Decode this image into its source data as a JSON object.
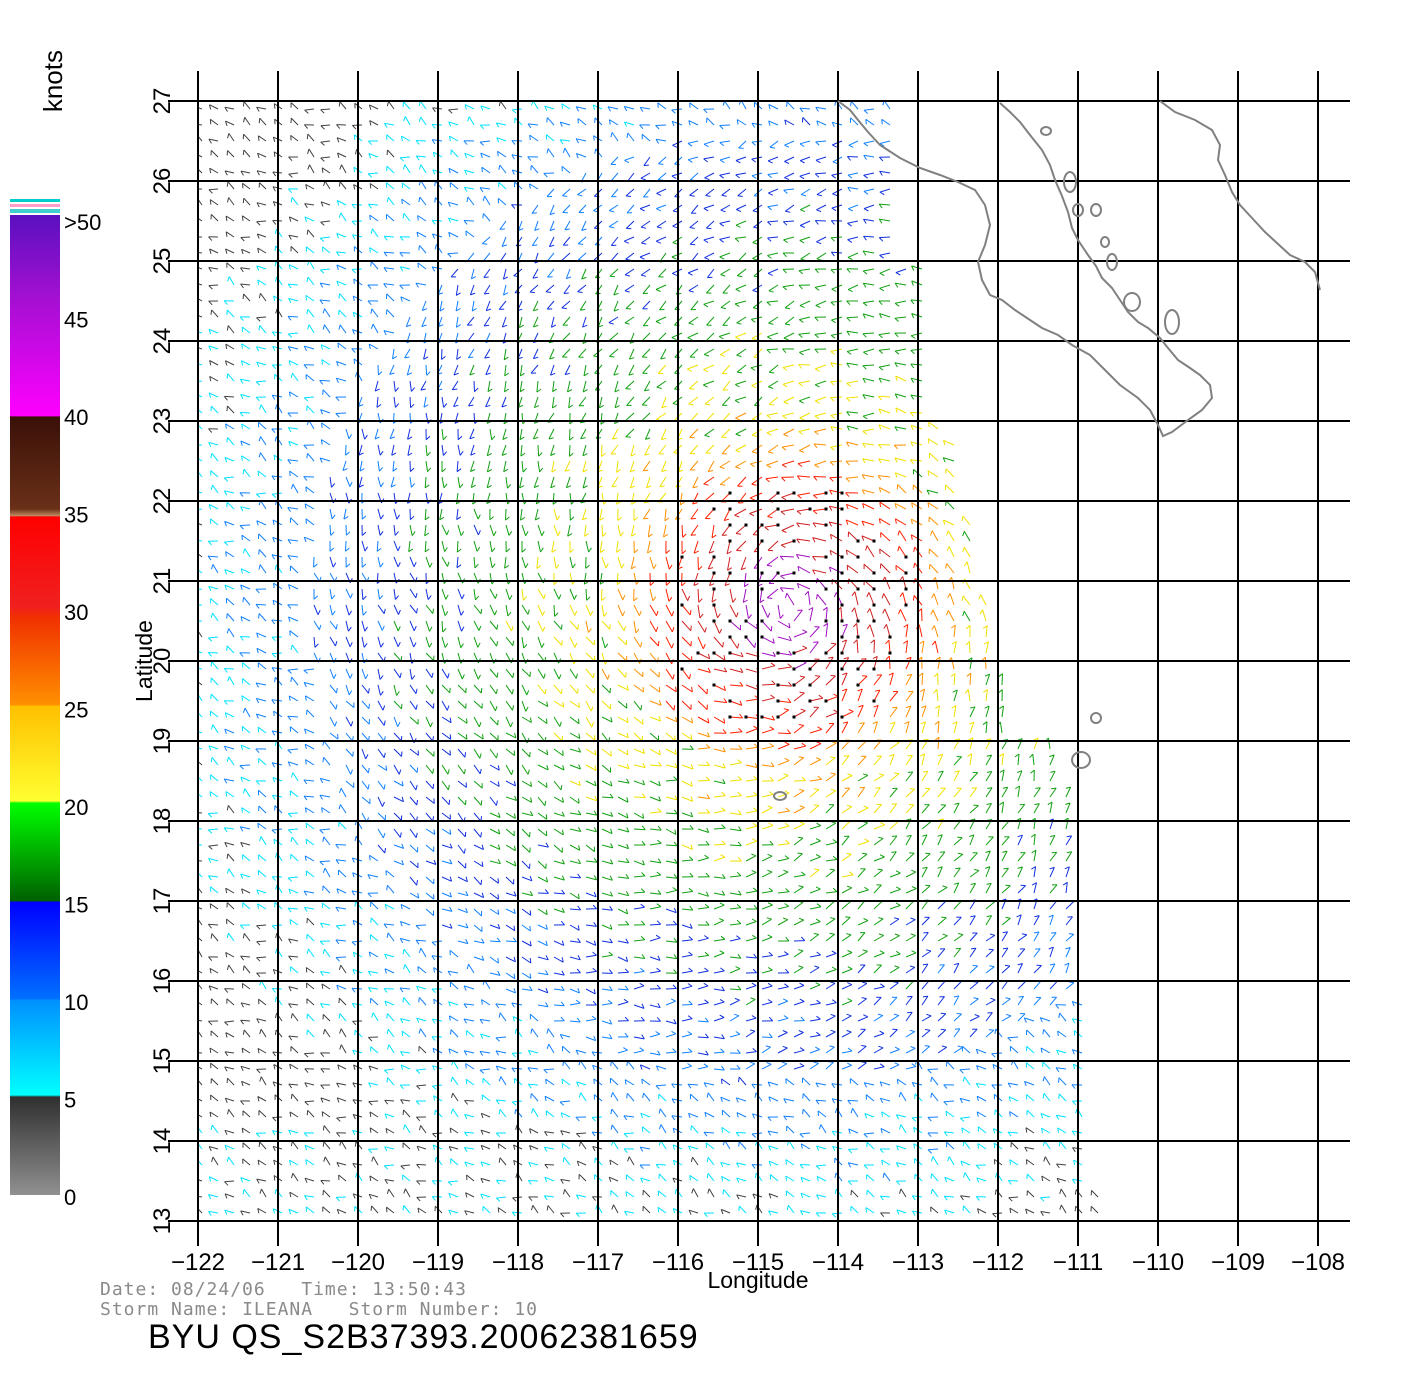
{
  "map": {
    "lon_range": [
      -122,
      -108
    ],
    "lat_range": [
      13,
      27
    ],
    "lon_ticks": [
      "-122",
      "-121",
      "-120",
      "-119",
      "-118",
      "-117",
      "-116",
      "-115",
      "-114",
      "-113",
      "-112",
      "-111",
      "-110",
      "-109",
      "-108"
    ],
    "lat_ticks": [
      "13",
      "14",
      "15",
      "16",
      "17",
      "18",
      "19",
      "20",
      "21",
      "22",
      "23",
      "24",
      "25",
      "26",
      "27"
    ],
    "xlabel": "Longitude",
    "ylabel": "Latitude",
    "grid": true,
    "coast_color": "#808080",
    "rain_flag_color": "#000000",
    "storm_center": {
      "lon": -114.6,
      "lat": 20.7
    }
  },
  "colorbar": {
    "unit_label": "knots",
    "labels": [
      ">50",
      "45",
      "40",
      "35",
      "30",
      "25",
      "20",
      "15",
      "10",
      "5",
      "0"
    ],
    "segments": [
      {
        "from": 50,
        "to": 40,
        "colors": [
          "#5a10c0",
          "#a010d0",
          "#ff00ff"
        ]
      },
      {
        "from": 40,
        "to": 35,
        "colors": [
          "#3a1008",
          "#6a3018",
          "#c08a60"
        ]
      },
      {
        "from": 35,
        "to": 30,
        "colors": [
          "#ff0000",
          "#f02020"
        ]
      },
      {
        "from": 30,
        "to": 25,
        "colors": [
          "#f03000",
          "#ff9000"
        ]
      },
      {
        "from": 25,
        "to": 20,
        "colors": [
          "#ffc000",
          "#ffff30"
        ]
      },
      {
        "from": 20,
        "to": 15,
        "colors": [
          "#00ff00",
          "#006000"
        ]
      },
      {
        "from": 15,
        "to": 10,
        "colors": [
          "#0000ff",
          "#0070ff"
        ]
      },
      {
        "from": 10,
        "to": 5,
        "colors": [
          "#0090ff",
          "#00ffff"
        ]
      },
      {
        "from": 5,
        "to": 0,
        "colors": [
          "#303030",
          "#909090"
        ]
      }
    ]
  },
  "footer": {
    "date_label": "Date:",
    "date": "08/24/06",
    "time_label": "Time:",
    "time": "13:50:43",
    "storm_name_label": "Storm Name:",
    "storm_name": "ILEANA",
    "storm_number_label": "Storm Number:",
    "storm_number": "10",
    "product": "BYU QS_S2B37393.20062381659"
  }
}
